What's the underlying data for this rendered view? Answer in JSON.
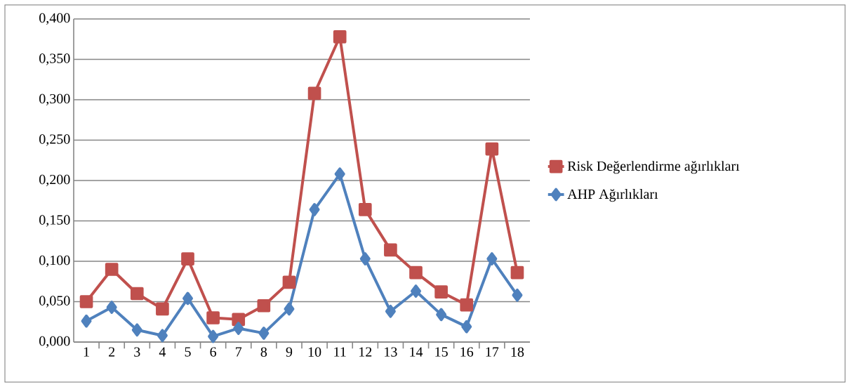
{
  "chart_data": {
    "type": "line",
    "categories": [
      "1",
      "2",
      "3",
      "4",
      "5",
      "6",
      "7",
      "8",
      "9",
      "10",
      "11",
      "12",
      "13",
      "14",
      "15",
      "16",
      "17",
      "18"
    ],
    "series": [
      {
        "name": "Risk Değerlendirme ağırlıkları",
        "color": "#c0504d",
        "marker": "square",
        "values": [
          0.05,
          0.09,
          0.06,
          0.041,
          0.103,
          0.03,
          0.028,
          0.045,
          0.074,
          0.308,
          0.378,
          0.164,
          0.114,
          0.086,
          0.062,
          0.046,
          0.239,
          0.086
        ]
      },
      {
        "name": "AHP Ağırlıkları",
        "color": "#4f81bd",
        "marker": "diamond",
        "values": [
          0.026,
          0.043,
          0.015,
          0.008,
          0.054,
          0.007,
          0.017,
          0.011,
          0.041,
          0.164,
          0.208,
          0.103,
          0.038,
          0.063,
          0.034,
          0.019,
          0.103,
          0.058
        ]
      }
    ],
    "ylim": [
      0,
      0.4
    ],
    "yticks": [
      {
        "value": 0,
        "label": "0,000"
      },
      {
        "value": 0.05,
        "label": "0,050"
      },
      {
        "value": 0.1,
        "label": "0,100"
      },
      {
        "value": 0.15,
        "label": "0,150"
      },
      {
        "value": 0.2,
        "label": "0,200"
      },
      {
        "value": 0.25,
        "label": "0,250"
      },
      {
        "value": 0.3,
        "label": "0,300"
      },
      {
        "value": 0.35,
        "label": "0,350"
      },
      {
        "value": 0.4,
        "label": "0,400"
      }
    ],
    "grid": "y",
    "legend": "right",
    "line_style": "solid"
  }
}
